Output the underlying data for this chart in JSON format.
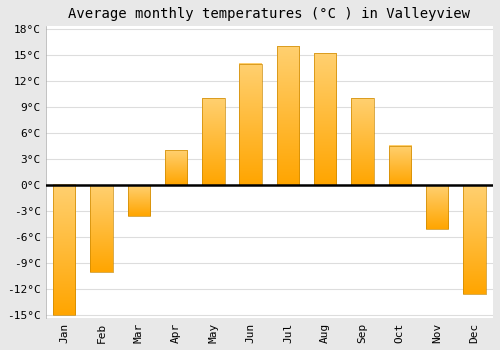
{
  "title": "Average monthly temperatures (°C ) in Valleyview",
  "months": [
    "Jan",
    "Feb",
    "Mar",
    "Apr",
    "May",
    "Jun",
    "Jul",
    "Aug",
    "Sep",
    "Oct",
    "Nov",
    "Dec"
  ],
  "values": [
    -15,
    -10,
    -3.5,
    4,
    10,
    14,
    16,
    15.2,
    10,
    4.5,
    -5,
    -12.5
  ],
  "bar_color_bottom": "#FFA500",
  "bar_color_top": "#FFD070",
  "bar_edge_color": "#CC8800",
  "plot_bg_color": "#FFFFFF",
  "outer_bg_color": "#E8E8E8",
  "grid_color": "#DDDDDD",
  "zero_line_color": "#000000",
  "ylim": [
    -15,
    18
  ],
  "ytick_step": 3,
  "title_fontsize": 10,
  "tick_fontsize": 8,
  "font_family": "monospace"
}
